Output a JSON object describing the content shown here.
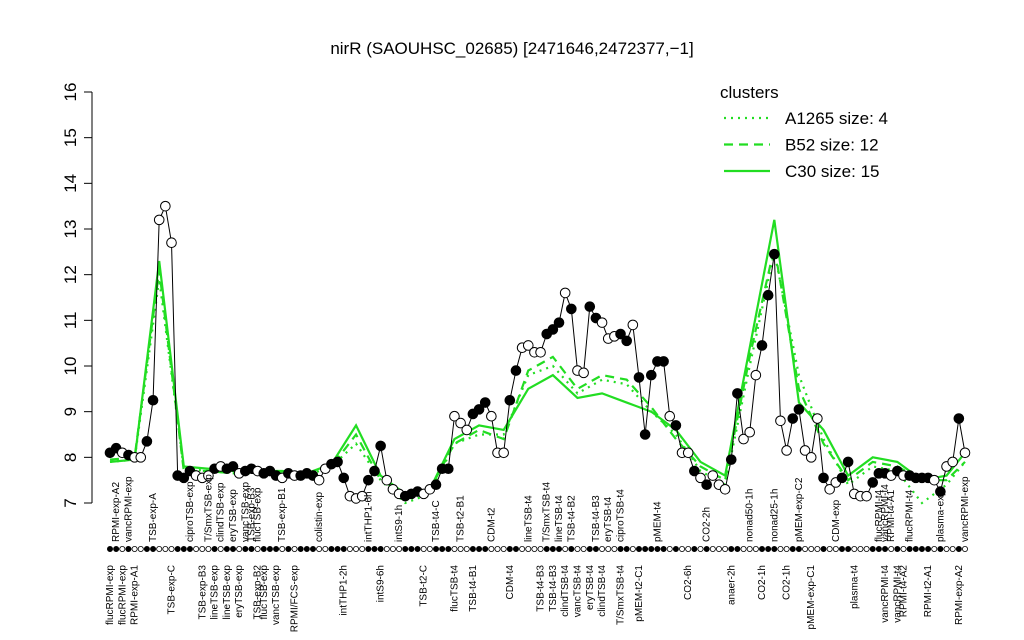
{
  "chart_data": {
    "type": "line",
    "title": "nirR (SAOUHSC_02685) [2471646,2472377,−1]",
    "ylim": [
      7,
      16
    ],
    "yticks": [
      7,
      8,
      9,
      10,
      11,
      12,
      13,
      14,
      15,
      16
    ],
    "legend_title": "clusters",
    "legend_position": "top-right",
    "legend_color": "#22dd22",
    "points": {
      "color": "#000000",
      "values": [
        8.1,
        8.2,
        8.1,
        8.05,
        8.0,
        8.0,
        8.35,
        9.25,
        13.2,
        13.5,
        12.7,
        7.6,
        7.55,
        7.7,
        7.6,
        7.55,
        7.6,
        7.75,
        7.8,
        7.75,
        7.8,
        7.65,
        7.7,
        7.75,
        7.7,
        7.65,
        7.7,
        7.6,
        7.55,
        7.65,
        7.6,
        7.6,
        7.65,
        7.6,
        7.5,
        7.75,
        7.85,
        7.9,
        7.55,
        7.15,
        7.1,
        7.15,
        7.5,
        7.7,
        8.25,
        7.5,
        7.3,
        7.2,
        7.15,
        7.2,
        7.25,
        7.2,
        7.3,
        7.4,
        7.75,
        7.75,
        8.9,
        8.75,
        8.6,
        8.95,
        9.05,
        9.2,
        8.9,
        8.1,
        8.1,
        9.25,
        9.9,
        10.4,
        10.45,
        10.3,
        10.3,
        10.7,
        10.8,
        10.95,
        11.6,
        11.25,
        9.9,
        9.85,
        11.3,
        11.05,
        10.95,
        10.6,
        10.65,
        10.7,
        10.55,
        10.9,
        9.75,
        8.5,
        9.8,
        10.1,
        10.1,
        8.9,
        8.7,
        8.1,
        8.1,
        7.7,
        7.55,
        7.4,
        7.6,
        7.4,
        7.3,
        7.95,
        9.4,
        8.4,
        8.55,
        9.8,
        10.45,
        11.55,
        12.45,
        8.8,
        8.15,
        8.85,
        9.05,
        8.15,
        8.0,
        8.85,
        7.55,
        7.3,
        7.45,
        7.55,
        7.9,
        7.2,
        7.15,
        7.15,
        7.45,
        7.65,
        7.65,
        7.6,
        7.7,
        7.6,
        7.6,
        7.55,
        7.55,
        7.55,
        7.5,
        7.25,
        7.8,
        7.9,
        8.85,
        8.1
      ],
      "filled": [
        true,
        true,
        false,
        true,
        false,
        false,
        true,
        true,
        false,
        false,
        false,
        true,
        true,
        true,
        false,
        false,
        false,
        true,
        false,
        true,
        true,
        false,
        true,
        true,
        false,
        true,
        true,
        true,
        false,
        true,
        false,
        true,
        true,
        true,
        false,
        false,
        true,
        true,
        true,
        false,
        false,
        false,
        true,
        true,
        true,
        false,
        false,
        false,
        true,
        true,
        true,
        false,
        false,
        true,
        true,
        true,
        false,
        false,
        false,
        true,
        true,
        true,
        false,
        false,
        false,
        true,
        true,
        false,
        false,
        false,
        false,
        true,
        true,
        true,
        false,
        true,
        false,
        false,
        true,
        true,
        false,
        false,
        false,
        true,
        true,
        false,
        true,
        true,
        true,
        true,
        true,
        false,
        true,
        false,
        false,
        true,
        false,
        true,
        false,
        false,
        false,
        true,
        true,
        false,
        false,
        false,
        true,
        true,
        true,
        false,
        false,
        true,
        true,
        false,
        false,
        false,
        true,
        false,
        false,
        true,
        true,
        false,
        false,
        false,
        true,
        true,
        true,
        false,
        true,
        false,
        true,
        true,
        true,
        true,
        false,
        true,
        false,
        false,
        true,
        false
      ]
    },
    "categories_bottom": [
      "flucRPMI-exp",
      null,
      "flucRPMI-exp",
      null,
      "RPMI-exp-A1",
      null,
      null,
      null,
      null,
      null,
      "TSB-exp-C",
      null,
      null,
      null,
      null,
      "TSB-exp-B3",
      null,
      "lineTSB-exp",
      null,
      "lineTSB-exp",
      null,
      "eryTSB-exp",
      null,
      null,
      "TSB-exp-B2",
      "flucTSB-exp",
      null,
      "vancTSB-exp",
      null,
      null,
      "RPMI/FCS-exp",
      null,
      null,
      null,
      null,
      null,
      null,
      null,
      "intTHP1-2h",
      null,
      null,
      null,
      null,
      null,
      "intS9-6h",
      null,
      null,
      null,
      null,
      null,
      null,
      "TSB-t2-C",
      null,
      null,
      null,
      null,
      "flucTSB-t4",
      null,
      null,
      "TSB-t4-B1",
      null,
      null,
      null,
      null,
      null,
      "CDM-t4",
      null,
      null,
      null,
      null,
      "TSB-t4-B3",
      null,
      "TSB-t4-B3",
      null,
      "clindTSB-t4",
      null,
      "vancTSB-t4",
      null,
      "eryTSB-t4",
      null,
      "clindTSB-t4",
      null,
      null,
      "T/SmxTSB-t4",
      null,
      null,
      "pMEM-t2-C1",
      null,
      null,
      null,
      null,
      null,
      null,
      null,
      "CO2-6h",
      null,
      null,
      null,
      null,
      null,
      null,
      "anaer-2h",
      null,
      null,
      null,
      null,
      "CO2-1h",
      null,
      null,
      null,
      "CO2-1h",
      null,
      null,
      null,
      "pMEM-exp-C1",
      null,
      null,
      null,
      null,
      null,
      null,
      "plasma-t4",
      null,
      null,
      null,
      null,
      "vancRPMI-t4",
      null,
      "vancRPMI-t4",
      "RPMI-t4-A2",
      null,
      null,
      null,
      "RPMI-t2-A1",
      null,
      null,
      null,
      null,
      "RPMI-exp-A2",
      null
    ],
    "categories_top": [
      null,
      "RPMI-exp-A2",
      null,
      "vancRPMI-exp",
      null,
      null,
      null,
      "TSB-exp-A",
      null,
      null,
      null,
      null,
      null,
      "ciproTSB-exp",
      null,
      null,
      "T/SmxTSB-exp",
      null,
      "clindTSB-exp",
      null,
      "eryTSB-exp",
      null,
      "vancTSB-exp",
      "TSB-exp-B3",
      "flucTSB-exp",
      null,
      null,
      null,
      "TSB-exp-B1",
      null,
      null,
      null,
      null,
      null,
      "colistin-exp",
      null,
      null,
      null,
      null,
      null,
      null,
      null,
      "intTHP1-6h",
      null,
      null,
      null,
      null,
      "intS9-1h",
      null,
      null,
      null,
      null,
      null,
      "TSB-t4-C",
      null,
      null,
      null,
      "TSB-t2-B1",
      null,
      null,
      null,
      null,
      "CDM-t2",
      null,
      null,
      null,
      null,
      null,
      "lineTSB-t4",
      null,
      null,
      "T/SmxTSB-t4",
      null,
      "lineTSB-t4",
      null,
      "TSB-t4-B2",
      null,
      null,
      null,
      "TSB-t4-B3",
      null,
      "eryTSB-t4",
      null,
      "ciproTSB-t4",
      null,
      null,
      null,
      null,
      null,
      "pMEM-t4",
      null,
      null,
      null,
      null,
      null,
      null,
      null,
      "CO2-2h",
      null,
      null,
      null,
      null,
      null,
      null,
      "nonad50-1h",
      null,
      null,
      null,
      "nonad25-1h",
      null,
      null,
      null,
      "pMEM-exp-C2",
      null,
      null,
      null,
      null,
      null,
      "CDM-exp",
      null,
      null,
      null,
      null,
      null,
      null,
      "flucRPMI-t4",
      "vancRPMI-t4",
      "RPMI-t4-A1",
      null,
      null,
      "flucRPMI-t4",
      null,
      null,
      null,
      null,
      "plasma-exp",
      null,
      null,
      null,
      "vancRPMI-exp"
    ],
    "cluster_x": [
      0,
      4,
      8,
      12,
      16,
      20,
      24,
      28,
      32,
      36,
      40,
      44,
      48,
      52,
      56,
      60,
      64,
      68,
      72,
      76,
      80,
      84,
      88,
      92,
      96,
      100,
      104,
      108,
      112,
      116,
      120,
      124,
      128,
      132,
      136,
      139
    ],
    "series": [
      {
        "name": "A1265 size: 4",
        "color": "#22dd22",
        "style": "dotted",
        "values": [
          7.9,
          7.95,
          11.9,
          7.75,
          7.7,
          7.65,
          7.65,
          7.6,
          7.6,
          7.8,
          8.3,
          7.5,
          7.0,
          7.2,
          8.3,
          8.5,
          8.5,
          9.8,
          10.0,
          9.4,
          9.7,
          9.6,
          9.0,
          8.5,
          7.7,
          7.4,
          10.0,
          12.5,
          9.8,
          8.4,
          7.4,
          7.8,
          7.7,
          7.0,
          7.4,
          7.9
        ]
      },
      {
        "name": "B52 size: 12",
        "color": "#22dd22",
        "style": "dashed",
        "values": [
          7.95,
          8.0,
          12.1,
          7.7,
          7.7,
          7.65,
          7.7,
          7.65,
          7.6,
          7.8,
          8.5,
          7.5,
          7.2,
          7.3,
          8.3,
          8.6,
          8.4,
          9.9,
          10.2,
          9.5,
          9.8,
          9.7,
          9.1,
          8.4,
          7.8,
          7.5,
          10.2,
          12.6,
          9.5,
          8.3,
          7.5,
          7.9,
          7.8,
          7.5,
          7.5,
          7.9
        ]
      },
      {
        "name": "C30 size: 15",
        "color": "#22dd22",
        "style": "solid",
        "values": [
          7.9,
          7.95,
          12.3,
          7.8,
          7.75,
          7.7,
          7.7,
          7.7,
          7.65,
          7.85,
          8.7,
          7.6,
          7.2,
          7.3,
          8.4,
          8.7,
          8.6,
          9.5,
          9.8,
          9.3,
          9.4,
          9.2,
          9.0,
          8.6,
          7.9,
          7.6,
          10.4,
          13.2,
          9.2,
          8.6,
          7.6,
          8.0,
          7.9,
          7.5,
          7.6,
          8.1
        ]
      }
    ]
  }
}
